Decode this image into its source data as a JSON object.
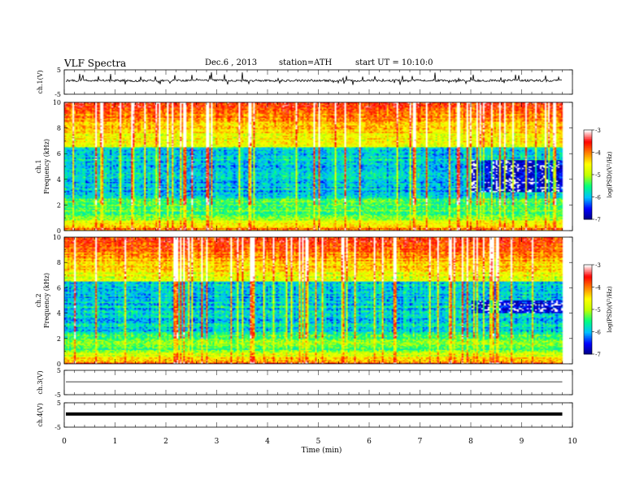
{
  "header": {
    "title": "VLF  Spectra",
    "date": "Dec.6  , 2013",
    "station": "station=ATH",
    "start": "start  UT  =   10:10:0"
  },
  "chart_data": [
    {
      "type": "line",
      "panel": "ch1-waveform",
      "ylabel": "ch.1(V)",
      "ylim": [
        -5,
        5
      ],
      "yticks": [
        "5",
        "-5"
      ],
      "xlim": [
        0,
        10
      ],
      "trace": "dense noisy waveform with frequent spikes centered near 0.6 V"
    },
    {
      "type": "heatmap",
      "panel": "ch1-spectrogram",
      "ylabel": "ch.1 Frequency (kHz)",
      "ylim": [
        0,
        10
      ],
      "yticks": [
        "0",
        "2",
        "4",
        "6",
        "8",
        "10"
      ],
      "xlim": [
        0,
        10
      ],
      "data_end_min": 9.8,
      "colorbar": {
        "label": "log(PSD)(V²/Hz)",
        "ticks": [
          "-3",
          "-4",
          "-5",
          "-6",
          "-7"
        ],
        "range": [
          -7,
          -3
        ]
      },
      "features": {
        "high_band_kHz": [
          6.5,
          10
        ],
        "low_band_kHz": [
          0,
          1
        ],
        "quiet_region": {
          "time_min": [
            8.0,
            9.8
          ],
          "freq_kHz": [
            3,
            5.5
          ]
        }
      }
    },
    {
      "type": "heatmap",
      "panel": "ch2-spectrogram",
      "ylabel": "ch.2 Frequency (kHz)",
      "ylim": [
        0,
        10
      ],
      "yticks": [
        "0",
        "2",
        "4",
        "6",
        "8",
        "10"
      ],
      "xlim": [
        0,
        10
      ],
      "data_end_min": 9.8,
      "colorbar": {
        "label": "log(PSD)(V²/Hz)",
        "ticks": [
          "-3",
          "-4",
          "-5",
          "-6",
          "-7"
        ],
        "range": [
          -7,
          -3
        ]
      },
      "features": {
        "high_band_kHz": [
          6.5,
          10
        ],
        "low_band_kHz": [
          0,
          1
        ],
        "quiet_region": {
          "time_min": [
            8.0,
            9.8
          ],
          "freq_kHz": [
            4,
            5
          ]
        }
      }
    },
    {
      "type": "line",
      "panel": "ch3-waveform",
      "ylabel": "ch.3(V)",
      "ylim": [
        -5,
        5
      ],
      "yticks": [
        "5",
        "-5"
      ],
      "xlim": [
        0,
        10
      ],
      "trace": "flat line near 0 V"
    },
    {
      "type": "line",
      "panel": "ch4-waveform",
      "ylabel": "ch.4(V)",
      "ylim": [
        -5,
        5
      ],
      "yticks": [
        "5",
        "-5"
      ],
      "xlim": [
        0,
        10
      ],
      "trace": "thick flat band near 0 V"
    }
  ],
  "xaxis": {
    "label": "Time  (min)",
    "ticks": [
      "0",
      "1",
      "2",
      "3",
      "4",
      "5",
      "6",
      "7",
      "8",
      "9",
      "10"
    ]
  },
  "colors": {
    "ramp": [
      "#000080",
      "#0000ff",
      "#00c0ff",
      "#00ff80",
      "#c0ff00",
      "#ffff00",
      "#ff8000",
      "#ff0000",
      "#ffffff"
    ]
  }
}
